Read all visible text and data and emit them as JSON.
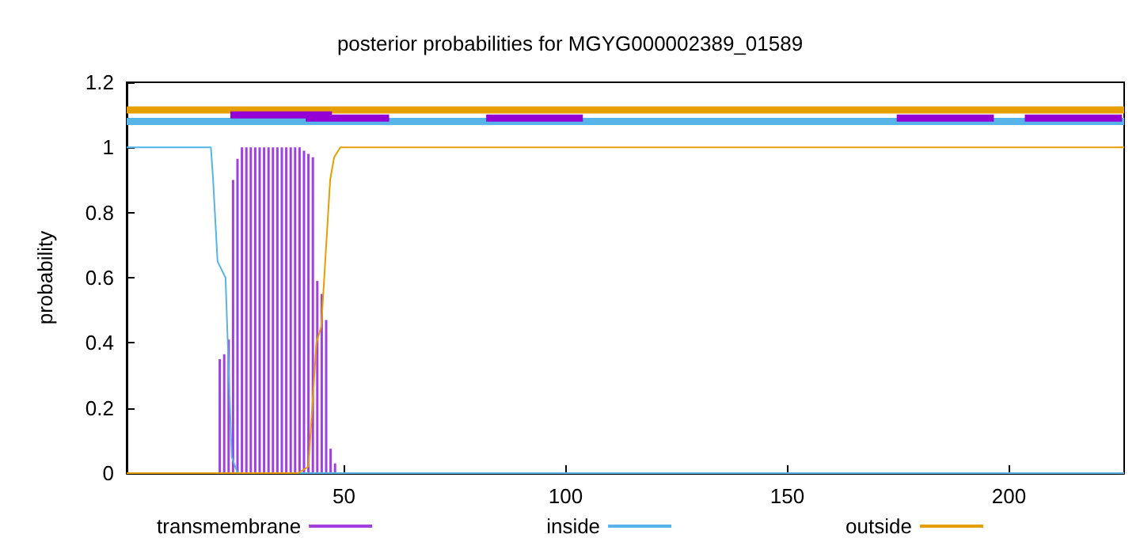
{
  "chart_data": {
    "type": "line",
    "title": "posterior probabilities for MGYG000002389_01589",
    "ylabel": "probability",
    "xlim": [
      1,
      226
    ],
    "xticks": [
      50,
      100,
      150,
      200
    ],
    "ylim": [
      0,
      1.2
    ],
    "yticks": [
      0,
      0.2,
      0.4,
      0.6,
      0.8,
      1,
      1.2
    ],
    "legend": "bottom",
    "grid": false,
    "marker": "none",
    "line_style": "solid",
    "series": [
      {
        "name": "transmembrane",
        "type": "bar",
        "color": "#a040e0",
        "x": [
          22,
          23,
          24,
          25,
          26,
          27,
          28,
          29,
          30,
          31,
          32,
          33,
          34,
          35,
          36,
          37,
          38,
          39,
          40,
          41,
          42,
          43,
          44,
          45,
          46,
          47,
          48
        ],
        "values": [
          0.35,
          0.365,
          0.41,
          0.9,
          0.965,
          1,
          1,
          1,
          1,
          1,
          1,
          1,
          1,
          1,
          1,
          1,
          1,
          1,
          1,
          0.99,
          0.98,
          0.97,
          0.59,
          0.55,
          0.47,
          0.075,
          0.03
        ]
      },
      {
        "name": "inside",
        "color": "#56b4e9",
        "x": [
          1,
          20,
          20.5,
          21.5,
          23.3,
          23.8,
          24.7,
          26,
          226
        ],
        "values": [
          1,
          1,
          0.9,
          0.65,
          0.6,
          0.4,
          0.05,
          0,
          0
        ]
      },
      {
        "name": "outside",
        "color": "#e69f00",
        "x": [
          1,
          39.7,
          42,
          43.8,
          44.9,
          46.9,
          47.8,
          49.2,
          226
        ],
        "values": [
          0,
          0,
          0.02,
          0.4,
          0.45,
          0.9,
          0.97,
          1,
          1
        ]
      },
      {
        "color": "#e69f00",
        "x": [
          1,
          226
        ],
        "values": [
          1.115,
          1.115
        ]
      },
      {
        "color": "#56b4e9",
        "x": [
          1,
          226
        ],
        "values": [
          1.08,
          1.08
        ]
      },
      {
        "color": "#9400d3",
        "x": [
          24.4,
          47.3
        ],
        "values": [
          1.1,
          1.1
        ]
      },
      {
        "color": "#9400d3",
        "x": [
          41.4,
          60.2
        ],
        "values": [
          1.09,
          1.09
        ]
      },
      {
        "color": "#9400d3",
        "x": [
          82.1,
          103.9
        ],
        "values": [
          1.09,
          1.09
        ]
      },
      {
        "color": "#9400d3",
        "x": [
          174.7,
          196.6
        ],
        "values": [
          1.09,
          1.09
        ]
      },
      {
        "color": "#9400d3",
        "x": [
          203.6,
          225.5
        ],
        "values": [
          1.09,
          1.09
        ]
      }
    ]
  }
}
